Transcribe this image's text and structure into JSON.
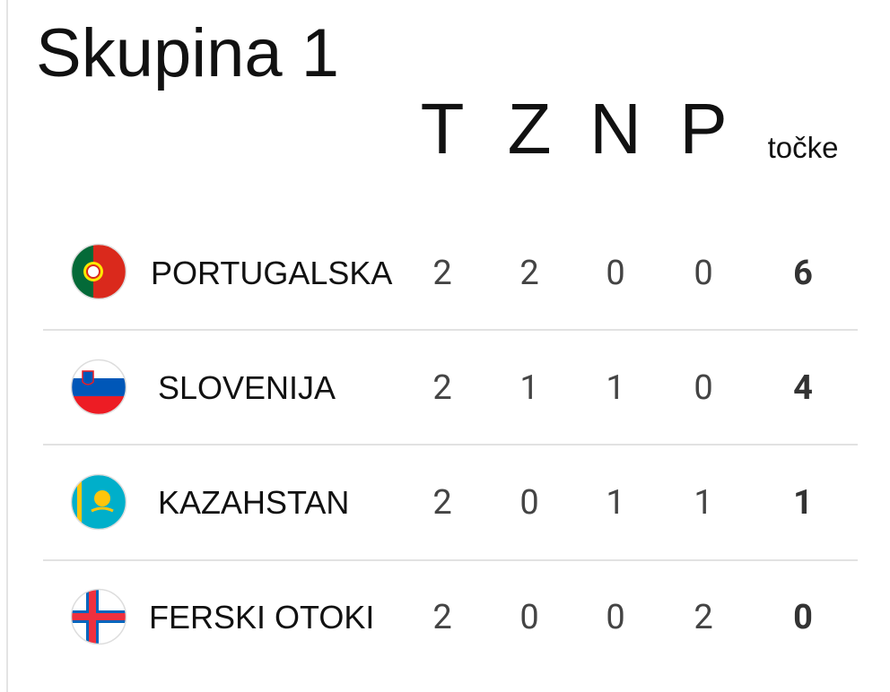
{
  "title": "Skupina 1",
  "table": {
    "headers": [
      "T",
      "Z",
      "N",
      "P",
      "točke"
    ],
    "rows": [
      {
        "team": "PORTUGALSKA",
        "values": [
          2,
          2,
          0,
          0,
          6
        ]
      },
      {
        "team": "SLOVENIJA",
        "values": [
          2,
          1,
          1,
          0,
          4
        ]
      },
      {
        "team": "KAZAHSTAN",
        "values": [
          2,
          0,
          1,
          1,
          1
        ]
      },
      {
        "team": "FERSKI OTOKI",
        "values": [
          2,
          0,
          0,
          2,
          0
        ]
      }
    ]
  }
}
